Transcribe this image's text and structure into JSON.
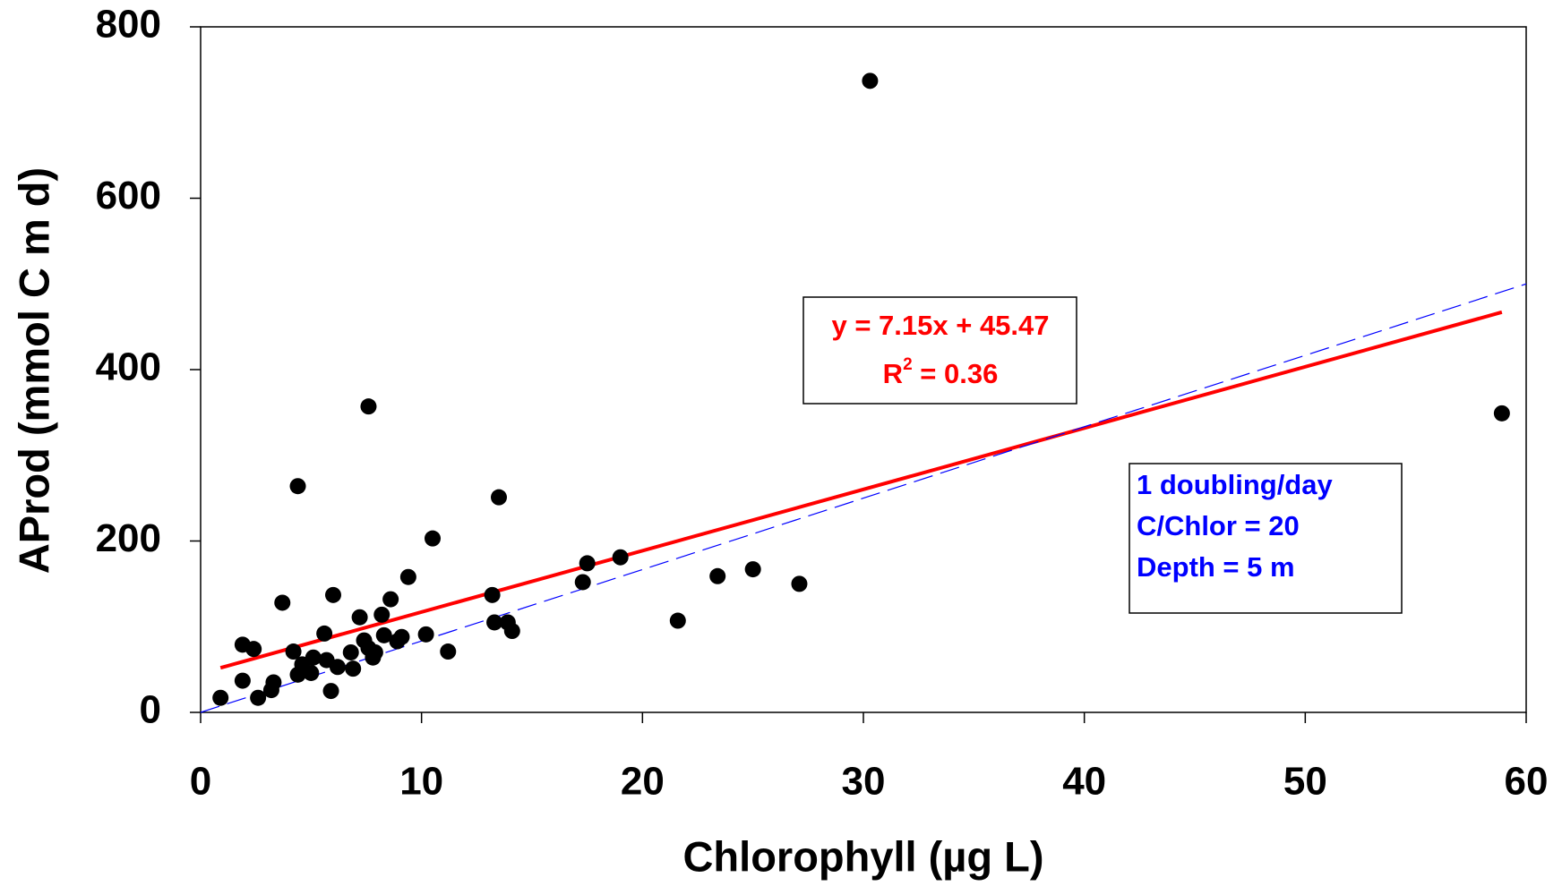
{
  "chart_data": {
    "type": "scatter",
    "x_label": "Chlorophyll (µg L)",
    "y_label": "AProd (mmol C m d)",
    "xlim": [
      0,
      60
    ],
    "xticks": [
      0,
      10,
      20,
      30,
      40,
      50,
      60
    ],
    "ylim": [
      0,
      800
    ],
    "yticks": [
      0,
      200,
      400,
      600,
      800
    ],
    "series": [
      {
        "color": "#000000",
        "x": [
          0.9,
          1.9,
          1.9,
          2.4,
          2.6,
          3.2,
          3.3,
          3.7,
          4.2,
          4.4,
          4.4,
          4.6,
          5.0,
          5.1,
          5.6,
          5.7,
          5.9,
          6.0,
          6.2,
          6.8,
          6.9,
          7.2,
          7.4,
          7.6,
          7.6,
          7.8,
          7.9,
          8.2,
          8.3,
          8.6,
          8.9,
          9.1,
          9.4,
          10.2,
          10.5,
          11.2,
          13.2,
          13.3,
          13.5,
          13.9,
          14.1,
          17.3,
          17.5,
          19.0,
          21.6,
          23.4,
          25.0,
          27.1,
          30.3,
          58.9
        ],
        "values": [
          17,
          79,
          37,
          74,
          17,
          26,
          35,
          128,
          71,
          264,
          44,
          56,
          46,
          64,
          92,
          61,
          25,
          137,
          53,
          70,
          51,
          111,
          84,
          357,
          75,
          64,
          70,
          114,
          90,
          132,
          83,
          88,
          158,
          91,
          203,
          71,
          137,
          105,
          251,
          105,
          95,
          152,
          174,
          181,
          107,
          159,
          167,
          150,
          737,
          349
        ]
      }
    ],
    "lines": [
      {
        "color": "#ff0000",
        "style": "solid",
        "x": [
          0.9,
          58.9
        ],
        "values": [
          52,
          467
        ]
      },
      {
        "color": "#0000ff",
        "style": "dashed",
        "x": [
          0,
          60
        ],
        "values": [
          0,
          500
        ]
      }
    ],
    "fit_box": {
      "equation": "y = 7.15x + 45.47",
      "r2_base": "R",
      "r2_sup": "2",
      "r2_rest": " = 0.36",
      "color": "#ff0000"
    },
    "model_box": {
      "lines": [
        "1 doubling/day",
        "C/Chlor = 20",
        "Depth = 5 m"
      ],
      "color": "#0000ff"
    }
  }
}
